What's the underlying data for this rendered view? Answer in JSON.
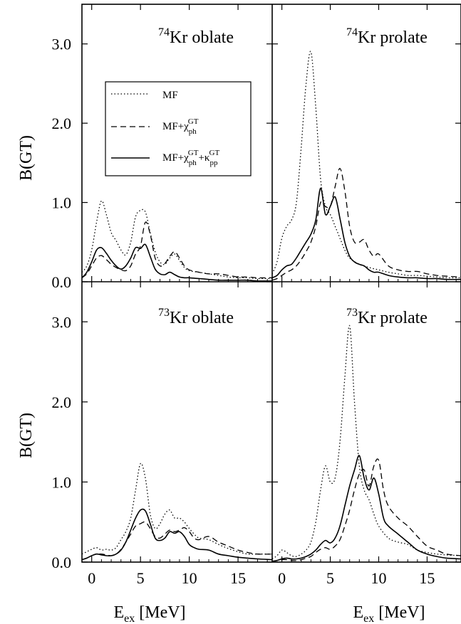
{
  "chart_data": {
    "type": "line",
    "layout": "2x2 grid, shared axes",
    "xlabel": "E_ex [MeV]",
    "ylabel": "B(GT)",
    "xlim": [
      -1,
      18.5
    ],
    "ylim": [
      0,
      3.5
    ],
    "x_ticks": [
      0,
      5,
      10,
      15
    ],
    "y_ticks": [
      0.0,
      1.0,
      2.0,
      3.0
    ],
    "y_tick_labels": [
      "0.0",
      "1.0",
      "2.0",
      "3.0"
    ],
    "grid": false,
    "legend": {
      "placement": "top-left panel, upper-middle",
      "entries": [
        {
          "key": "mf",
          "label": "MF",
          "style": "dotted"
        },
        {
          "key": "ph",
          "label": "MF+χph GT",
          "style": "dashed"
        },
        {
          "key": "pp",
          "label": "MF+χph GT+κpp GT",
          "style": "solid"
        }
      ]
    },
    "panels": [
      {
        "id": "kr74-oblate",
        "mass": "74",
        "label": "Kr oblate",
        "series": [
          {
            "key": "mf",
            "x": [
              -1,
              -0.5,
              0,
              0.5,
              1,
              1.5,
              2,
              2.5,
              3,
              3.5,
              4,
              4.5,
              5,
              5.5,
              6,
              6.5,
              7,
              7.5,
              8,
              8.5,
              9,
              9.5,
              10,
              11,
              12,
              13,
              14,
              15,
              16,
              17,
              18.5
            ],
            "values": [
              0.12,
              0.2,
              0.4,
              0.75,
              1.02,
              0.85,
              0.62,
              0.52,
              0.4,
              0.34,
              0.5,
              0.82,
              0.9,
              0.88,
              0.62,
              0.38,
              0.25,
              0.22,
              0.3,
              0.35,
              0.27,
              0.18,
              0.14,
              0.12,
              0.1,
              0.08,
              0.06,
              0.05,
              0.05,
              0.04,
              0.04
            ]
          },
          {
            "key": "ph",
            "x": [
              -1,
              -0.5,
              0,
              0.5,
              1,
              1.5,
              2,
              2.5,
              3,
              3.5,
              4,
              4.5,
              5,
              5.5,
              6,
              6.5,
              7,
              7.5,
              8,
              8.5,
              9,
              9.5,
              10,
              11,
              12,
              13,
              14,
              15,
              16,
              17,
              18.5
            ],
            "values": [
              0.05,
              0.1,
              0.2,
              0.3,
              0.33,
              0.28,
              0.22,
              0.18,
              0.15,
              0.14,
              0.2,
              0.35,
              0.45,
              0.75,
              0.6,
              0.3,
              0.2,
              0.23,
              0.32,
              0.38,
              0.3,
              0.2,
              0.15,
              0.12,
              0.1,
              0.1,
              0.08,
              0.06,
              0.06,
              0.05,
              0.05
            ]
          },
          {
            "key": "pp",
            "x": [
              -1,
              -0.5,
              0,
              0.5,
              1,
              1.5,
              2,
              2.5,
              3,
              3.5,
              4,
              4.5,
              5,
              5.5,
              6,
              6.5,
              7,
              7.5,
              8,
              8.5,
              9,
              9.5,
              10,
              11,
              12,
              13,
              14,
              15,
              16,
              17,
              18.5
            ],
            "values": [
              0.05,
              0.12,
              0.25,
              0.4,
              0.43,
              0.36,
              0.27,
              0.2,
              0.16,
              0.2,
              0.3,
              0.43,
              0.42,
              0.47,
              0.32,
              0.16,
              0.1,
              0.09,
              0.12,
              0.09,
              0.06,
              0.05,
              0.05,
              0.04,
              0.03,
              0.02,
              0.02,
              0.02,
              0.02,
              0.01,
              0.01
            ]
          }
        ]
      },
      {
        "id": "kr74-prolate",
        "mass": "74",
        "label": "Kr prolate",
        "series": [
          {
            "key": "mf",
            "x": [
              -1,
              -0.5,
              0,
              0.5,
              1,
              1.5,
              2,
              2.5,
              3,
              3.5,
              4,
              4.5,
              5,
              5.5,
              6,
              6.5,
              7,
              8,
              9,
              10,
              11,
              12,
              13,
              14,
              15,
              16,
              17,
              18.5
            ],
            "values": [
              0.1,
              0.25,
              0.55,
              0.7,
              0.78,
              1.0,
              1.7,
              2.5,
              2.9,
              2.2,
              1.3,
              0.95,
              0.85,
              0.7,
              0.55,
              0.4,
              0.3,
              0.22,
              0.18,
              0.15,
              0.12,
              0.1,
              0.08,
              0.08,
              0.07,
              0.06,
              0.05,
              0.05
            ]
          },
          {
            "key": "ph",
            "x": [
              -1,
              -0.5,
              0,
              0.5,
              1,
              1.5,
              2,
              2.5,
              3,
              3.5,
              4,
              4.5,
              5,
              5.5,
              6,
              6.5,
              7,
              7.5,
              8,
              8.5,
              9,
              9.5,
              10,
              11,
              12,
              13,
              14,
              15,
              16,
              17,
              18.5
            ],
            "values": [
              0.02,
              0.04,
              0.08,
              0.12,
              0.15,
              0.2,
              0.28,
              0.38,
              0.5,
              0.7,
              1.0,
              0.95,
              0.95,
              1.2,
              1.43,
              1.15,
              0.7,
              0.5,
              0.5,
              0.53,
              0.4,
              0.32,
              0.35,
              0.2,
              0.15,
              0.13,
              0.13,
              0.1,
              0.08,
              0.07,
              0.06
            ]
          },
          {
            "key": "pp",
            "x": [
              -1,
              -0.5,
              0,
              0.5,
              1,
              1.5,
              2,
              2.5,
              3,
              3.5,
              4,
              4.5,
              5,
              5.5,
              6,
              6.5,
              7,
              7.5,
              8,
              8.5,
              9,
              9.5,
              10,
              11,
              12,
              13,
              14,
              15,
              16,
              17,
              18.5
            ],
            "values": [
              0.05,
              0.08,
              0.15,
              0.2,
              0.22,
              0.3,
              0.4,
              0.5,
              0.6,
              0.78,
              1.18,
              0.85,
              0.95,
              1.07,
              0.8,
              0.5,
              0.32,
              0.25,
              0.22,
              0.2,
              0.15,
              0.12,
              0.12,
              0.08,
              0.06,
              0.05,
              0.05,
              0.04,
              0.04,
              0.03,
              0.03
            ]
          }
        ]
      },
      {
        "id": "kr73-oblate",
        "mass": "73",
        "label": "Kr oblate",
        "series": [
          {
            "key": "mf",
            "x": [
              -1,
              -0.5,
              0,
              0.5,
              1,
              1.5,
              2,
              2.5,
              3,
              3.5,
              4,
              4.5,
              5,
              5.5,
              6,
              6.5,
              7,
              7.5,
              8,
              8.5,
              9,
              9.5,
              10,
              10.5,
              11,
              12,
              13,
              14,
              15,
              16,
              17,
              18.5
            ],
            "values": [
              0.1,
              0.13,
              0.16,
              0.18,
              0.15,
              0.16,
              0.15,
              0.18,
              0.28,
              0.38,
              0.55,
              0.9,
              1.23,
              1.05,
              0.6,
              0.42,
              0.48,
              0.6,
              0.65,
              0.55,
              0.55,
              0.5,
              0.42,
              0.35,
              0.3,
              0.28,
              0.22,
              0.17,
              0.13,
              0.1,
              0.1,
              0.1
            ]
          },
          {
            "key": "ph",
            "x": [
              -1,
              -0.5,
              0,
              0.5,
              1,
              1.5,
              2,
              2.5,
              3,
              3.5,
              4,
              4.5,
              5,
              5.5,
              6,
              6.5,
              7,
              7.5,
              8,
              8.5,
              9,
              9.5,
              10,
              10.5,
              11,
              12,
              13,
              14,
              15,
              16,
              17,
              18.5
            ],
            "values": [
              0.03,
              0.05,
              0.08,
              0.1,
              0.1,
              0.09,
              0.08,
              0.1,
              0.16,
              0.25,
              0.35,
              0.45,
              0.48,
              0.5,
              0.42,
              0.32,
              0.3,
              0.35,
              0.4,
              0.38,
              0.4,
              0.43,
              0.38,
              0.3,
              0.28,
              0.32,
              0.25,
              0.2,
              0.15,
              0.12,
              0.1,
              0.1
            ]
          },
          {
            "key": "pp",
            "x": [
              -1,
              -0.5,
              0,
              0.5,
              1,
              1.5,
              2,
              2.5,
              3,
              3.5,
              4,
              4.5,
              5,
              5.5,
              6,
              6.5,
              7,
              7.5,
              8,
              8.5,
              9,
              9.5,
              10,
              10.5,
              11,
              12,
              13,
              14,
              15,
              16,
              17,
              18.5
            ],
            "values": [
              0.03,
              0.05,
              0.08,
              0.1,
              0.09,
              0.08,
              0.08,
              0.1,
              0.15,
              0.25,
              0.4,
              0.55,
              0.65,
              0.64,
              0.48,
              0.3,
              0.27,
              0.3,
              0.38,
              0.36,
              0.38,
              0.32,
              0.22,
              0.18,
              0.16,
              0.15,
              0.1,
              0.08,
              0.06,
              0.05,
              0.04,
              0.03
            ]
          }
        ]
      },
      {
        "id": "kr73-prolate",
        "mass": "73",
        "label": "Kr prolate",
        "series": [
          {
            "key": "mf",
            "x": [
              -1,
              -0.5,
              0,
              0.5,
              1,
              1.5,
              2,
              2.5,
              3,
              3.5,
              4,
              4.5,
              5,
              5.5,
              6,
              6.5,
              7,
              7.5,
              8,
              8.5,
              9,
              9.5,
              10,
              11,
              12,
              13,
              14,
              15,
              16,
              17,
              18.5
            ],
            "values": [
              0.04,
              0.08,
              0.15,
              0.12,
              0.08,
              0.07,
              0.1,
              0.15,
              0.25,
              0.5,
              0.9,
              1.2,
              1.0,
              1.05,
              1.5,
              2.3,
              2.95,
              2.0,
              1.2,
              0.9,
              0.78,
              0.6,
              0.45,
              0.3,
              0.25,
              0.22,
              0.15,
              0.12,
              0.1,
              0.09,
              0.08
            ]
          },
          {
            "key": "ph",
            "x": [
              -1,
              -0.5,
              0,
              0.5,
              1,
              1.5,
              2,
              2.5,
              3,
              3.5,
              4,
              4.5,
              5,
              5.5,
              6,
              6.5,
              7,
              7.5,
              8,
              8.5,
              9,
              9.5,
              10,
              10.5,
              11,
              12,
              13,
              14,
              15,
              16,
              17,
              18.5
            ],
            "values": [
              0.01,
              0.02,
              0.03,
              0.03,
              0.02,
              0.02,
              0.03,
              0.05,
              0.07,
              0.12,
              0.16,
              0.18,
              0.16,
              0.2,
              0.28,
              0.45,
              0.65,
              0.9,
              1.1,
              1.15,
              0.95,
              1.2,
              1.27,
              0.9,
              0.7,
              0.55,
              0.45,
              0.32,
              0.2,
              0.15,
              0.1,
              0.08
            ]
          },
          {
            "key": "pp",
            "x": [
              -1,
              -0.5,
              0,
              0.5,
              1,
              1.5,
              2,
              2.5,
              3,
              3.5,
              4,
              4.5,
              5,
              5.5,
              6,
              6.5,
              7,
              7.5,
              8,
              8.5,
              9,
              9.5,
              10,
              10.5,
              11,
              12,
              13,
              14,
              15,
              16,
              17,
              18.5
            ],
            "values": [
              0.01,
              0.02,
              0.04,
              0.05,
              0.04,
              0.04,
              0.05,
              0.07,
              0.1,
              0.15,
              0.22,
              0.27,
              0.24,
              0.3,
              0.45,
              0.7,
              0.95,
              1.15,
              1.33,
              1.05,
              0.9,
              1.05,
              0.85,
              0.55,
              0.45,
              0.35,
              0.25,
              0.15,
              0.1,
              0.07,
              0.05,
              0.04
            ]
          }
        ]
      }
    ]
  }
}
